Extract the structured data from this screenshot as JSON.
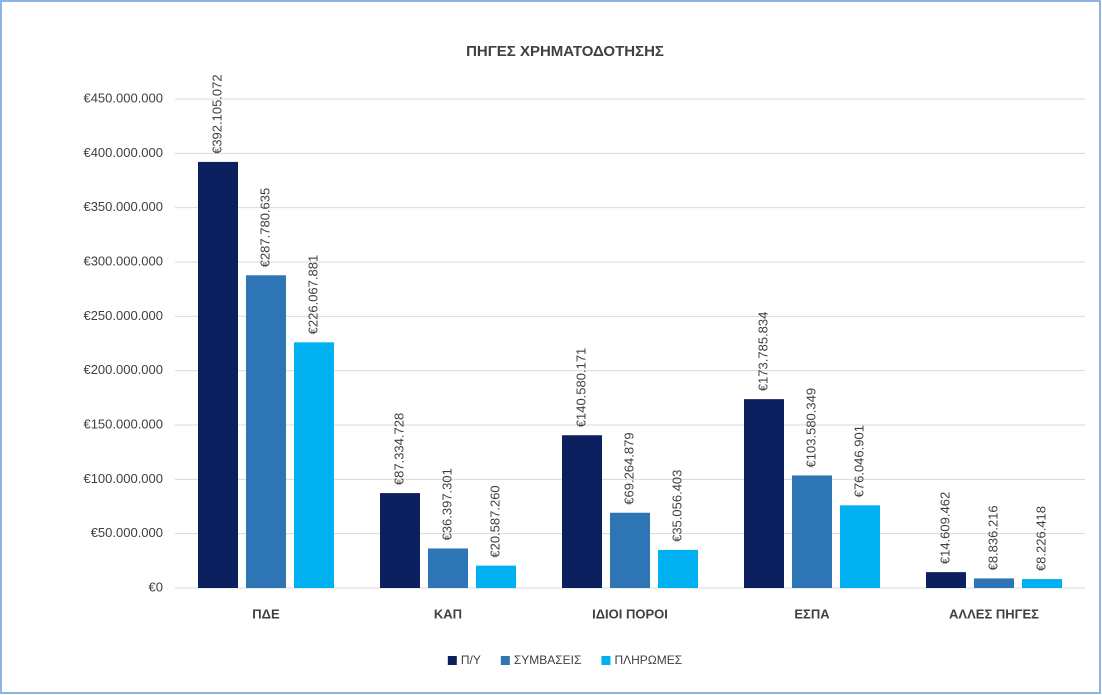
{
  "chart_data": {
    "type": "bar",
    "title": "ΠΗΓΕΣ ΧΡΗΜΑΤΟΔΟΤΗΣΗΣ",
    "categories": [
      "ΠΔΕ",
      "ΚΑΠ",
      "ΙΔΙΟΙ ΠΟΡΟΙ",
      "ΕΣΠΑ",
      "ΑΛΛΕΣ ΠΗΓΕΣ"
    ],
    "series": [
      {
        "name": "Π/Υ",
        "color": "#0c1f5e",
        "values": [
          392105072,
          87334728,
          140580171,
          173785834,
          14609462
        ],
        "value_labels": [
          "€392.105.072",
          "€87.334.728",
          "€140.580.171",
          "€173.785.834",
          "€14.609.462"
        ]
      },
      {
        "name": "ΣΥΜΒΑΣΕΙΣ",
        "color": "#2e75b6",
        "values": [
          287780635,
          36397301,
          69264879,
          103580349,
          8836216
        ],
        "value_labels": [
          "€287.780.635",
          "€36.397.301",
          "€69.264.879",
          "€103.580.349",
          "€8.836.216"
        ]
      },
      {
        "name": "ΠΛΗΡΩΜΕΣ",
        "color": "#00b0f0",
        "values": [
          226067881,
          20587260,
          35056403,
          76046901,
          8226418
        ],
        "value_labels": [
          "€226.067.881",
          "€20.587.260",
          "€35.056.403",
          "€76.046.901",
          "€8.226.418"
        ]
      }
    ],
    "ylim": [
      0,
      450000000
    ],
    "yticks": [
      {
        "value": 0,
        "label": "€0"
      },
      {
        "value": 50000000,
        "label": "€50.000.000"
      },
      {
        "value": 100000000,
        "label": "€100.000.000"
      },
      {
        "value": 150000000,
        "label": "€150.000.000"
      },
      {
        "value": 200000000,
        "label": "€200.000.000"
      },
      {
        "value": 250000000,
        "label": "€250.000.000"
      },
      {
        "value": 300000000,
        "label": "€300.000.000"
      },
      {
        "value": 350000000,
        "label": "€350.000.000"
      },
      {
        "value": 400000000,
        "label": "€400.000.000"
      },
      {
        "value": 450000000,
        "label": "€450.000.000"
      }
    ],
    "grid": true,
    "legend": "bottom"
  }
}
